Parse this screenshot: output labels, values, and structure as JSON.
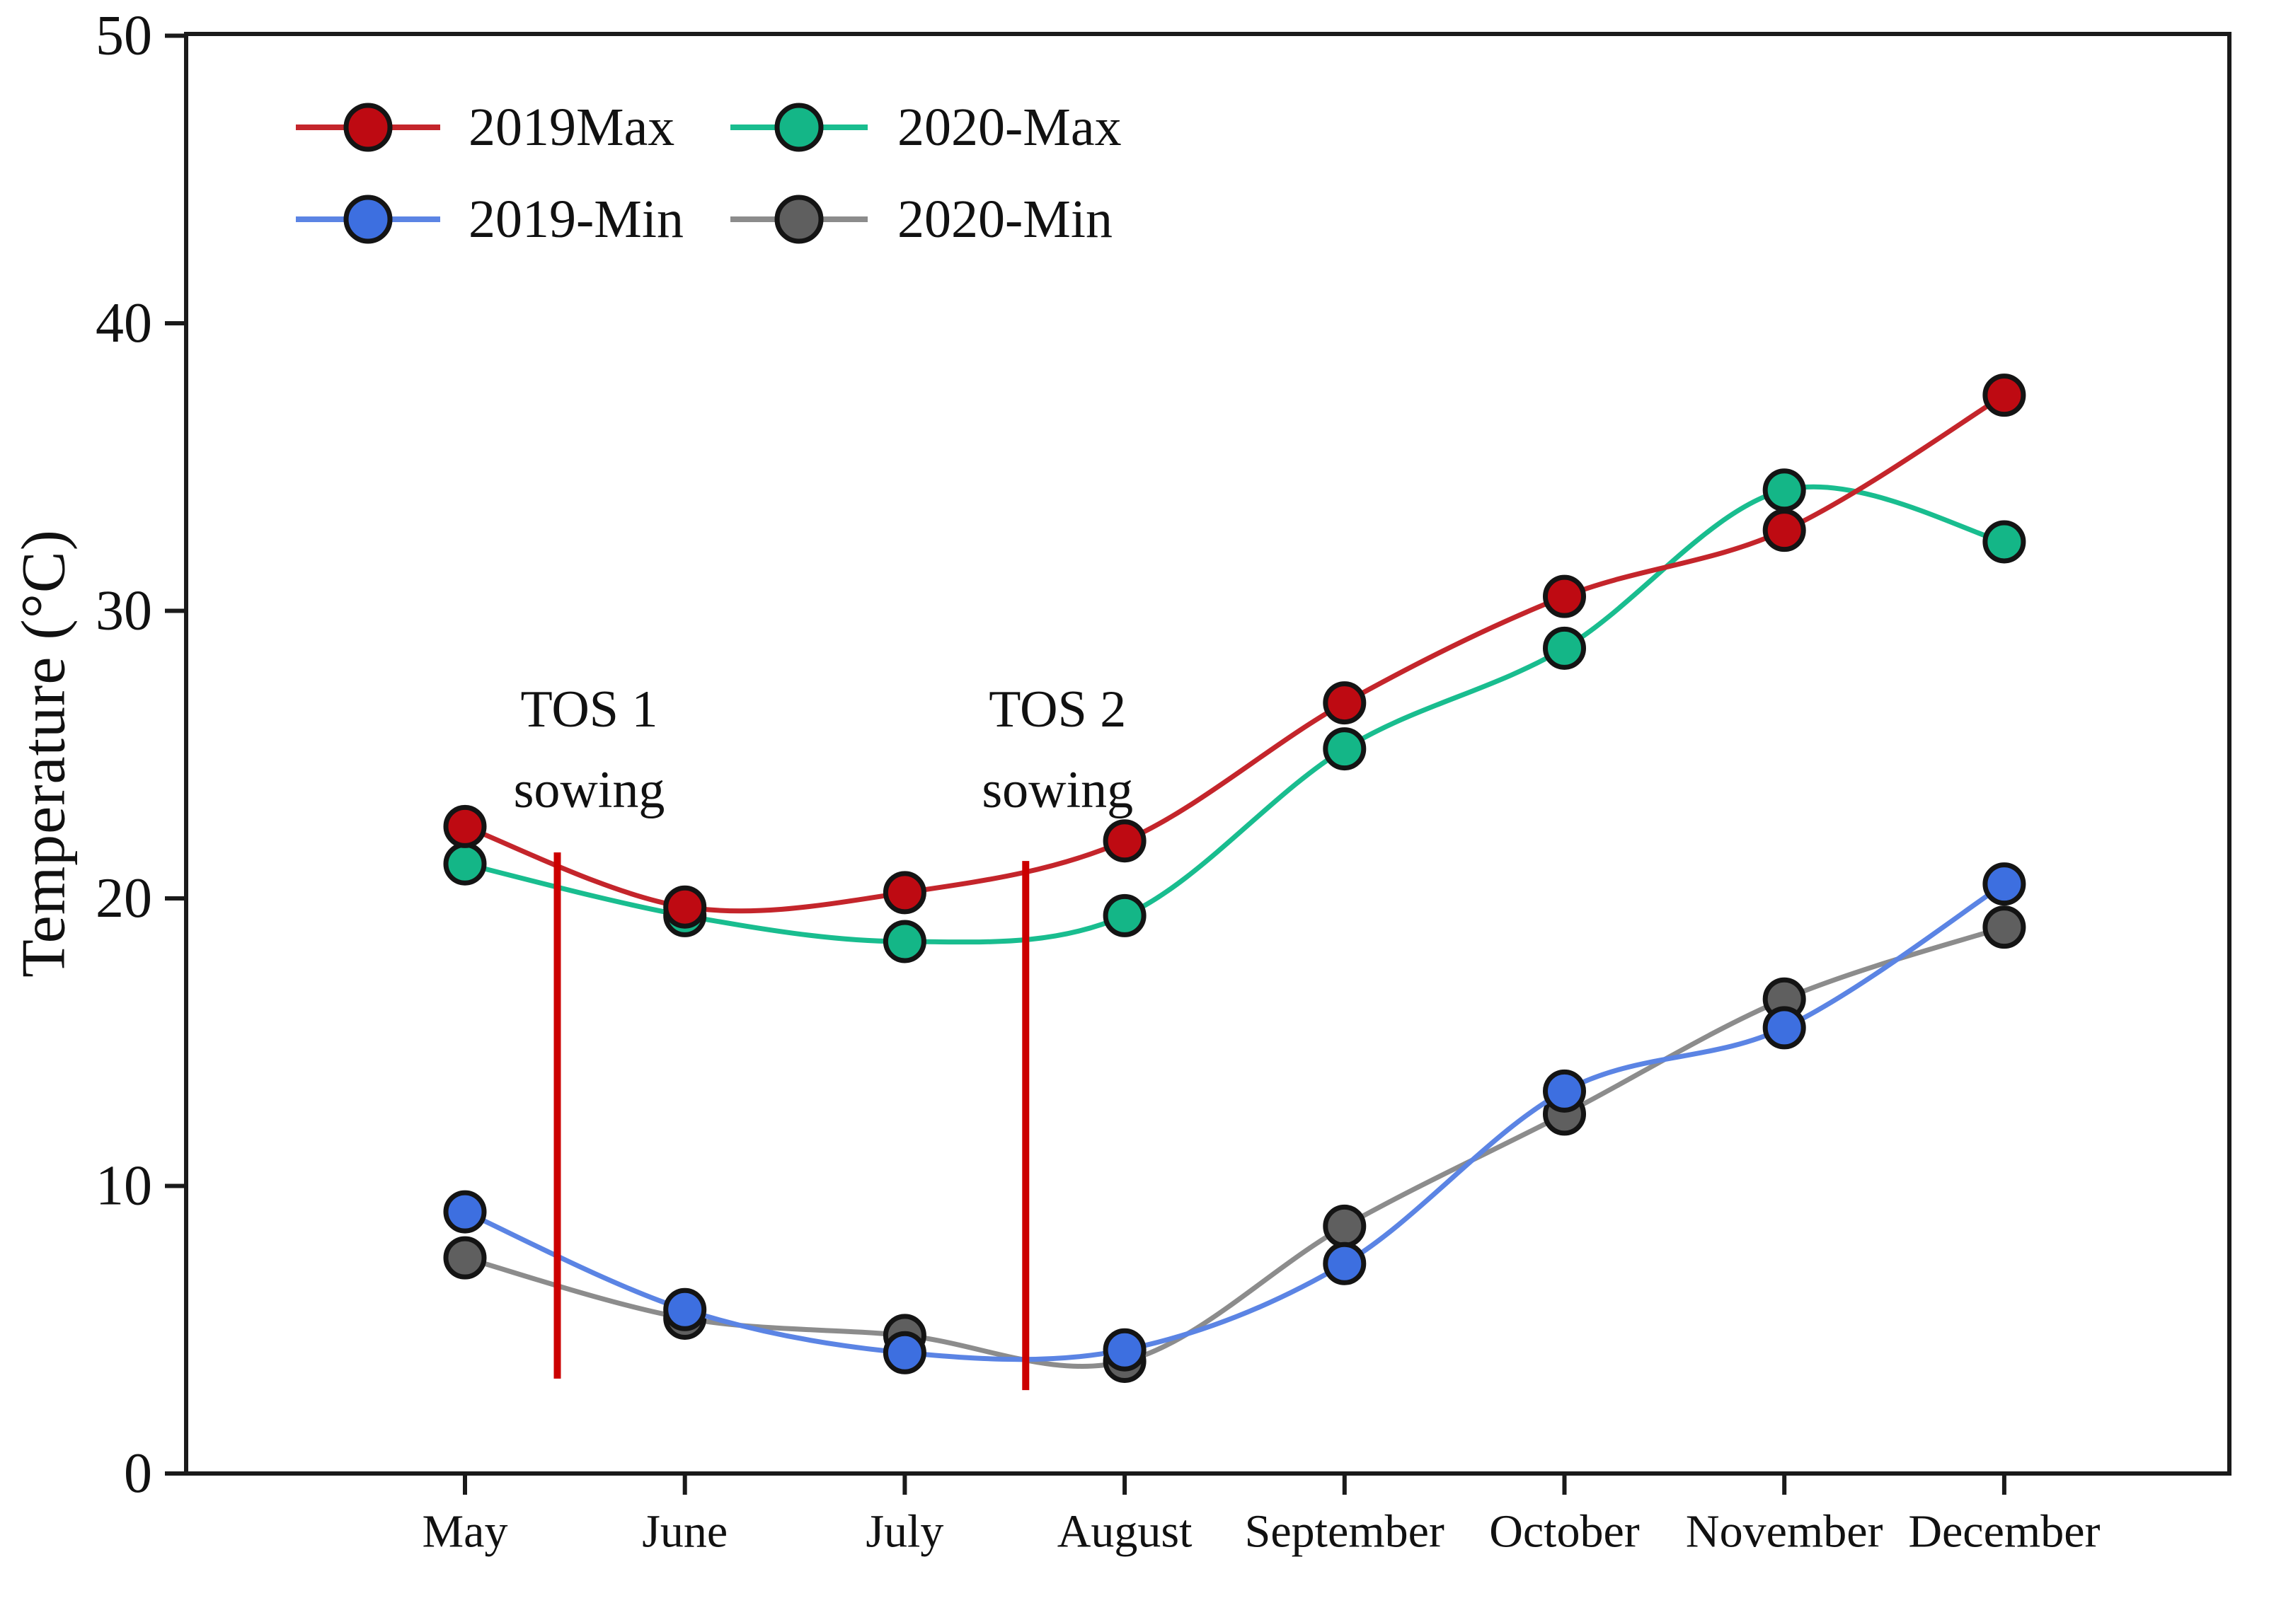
{
  "chart_data": {
    "type": "line",
    "title": "",
    "xlabel": "",
    "ylabel": "Temperature (°C)",
    "ylim": [
      0,
      50
    ],
    "yticks": [
      0,
      10,
      20,
      30,
      40,
      50
    ],
    "grid": false,
    "legend_position": "top-left-inside",
    "categories": [
      "May",
      "June",
      "July",
      "August",
      "September",
      "October",
      "November",
      "December"
    ],
    "series": [
      {
        "name": "2019Max",
        "marker_color": "#BE0A12",
        "line_color": "#C4252B",
        "values": [
          22.5,
          19.7,
          20.2,
          22.0,
          26.8,
          30.5,
          32.8,
          37.5
        ]
      },
      {
        "name": "2019-Min",
        "marker_color": "#3D6FE0",
        "line_color": "#5B84E4",
        "values": [
          9.1,
          5.7,
          4.2,
          4.3,
          7.3,
          13.3,
          15.5,
          20.5
        ]
      },
      {
        "name": "2020-Max",
        "marker_color": "#14B687",
        "line_color": "#19BD8F",
        "values": [
          21.2,
          19.4,
          18.5,
          19.4,
          25.2,
          28.7,
          34.2,
          32.4
        ]
      },
      {
        "name": "2020-Min",
        "marker_color": "#5F5F5F",
        "line_color": "#8C8C8C",
        "values": [
          7.5,
          5.4,
          4.8,
          3.9,
          8.6,
          12.5,
          16.5,
          19.0
        ]
      }
    ],
    "marker": "circle",
    "marker_edge_color": "#141414",
    "annotations": [
      {
        "title": "TOS 1",
        "subtitle": "sowing",
        "x_month_index": 0.42,
        "y_from": 3.3,
        "y_to": 21.6,
        "line_color": "#CC0000"
      },
      {
        "title": "TOS 2",
        "subtitle": "sowing",
        "x_month_index": 2.55,
        "y_from": 2.9,
        "y_to": 21.3,
        "line_color": "#CC0000"
      }
    ],
    "axis_color": "#1A1A1A"
  }
}
